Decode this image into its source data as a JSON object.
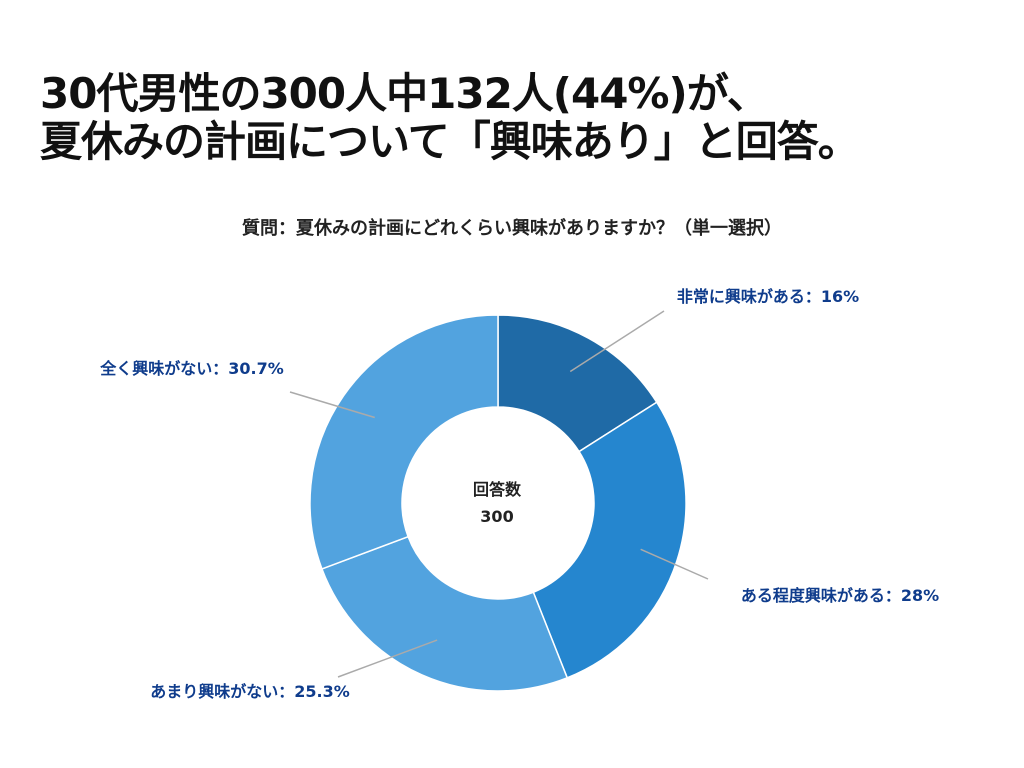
{
  "headline": {
    "line1": "30代男性の300人中132人(44%)が、",
    "line2": "夏休みの計画について「興味あり」と回答。"
  },
  "chart_data": {
    "type": "pie",
    "variant": "donut",
    "title": "質問：夏休みの計画にどれくらい興味がありますか？（単一選択）",
    "center_label": "回答数",
    "center_value": "300",
    "slices": [
      {
        "name": "非常に興味がある",
        "value": 16,
        "label": "非常に興味がある：16%",
        "color": "#1f6aa6"
      },
      {
        "name": "ある程度興味がある",
        "value": 28,
        "label": "ある程度興味がある：28%",
        "color": "#2586cf"
      },
      {
        "name": "あまり興味がない",
        "value": 25.3,
        "label": "あまり興味がない：25.3%",
        "color": "#52a3df"
      },
      {
        "name": "全く興味がない",
        "value": 30.7,
        "label": "全く興味がない：30.7%",
        "color": "#52a3df"
      }
    ],
    "label_color": "#0f3c8c",
    "leader_color": "#aaaaaa"
  }
}
